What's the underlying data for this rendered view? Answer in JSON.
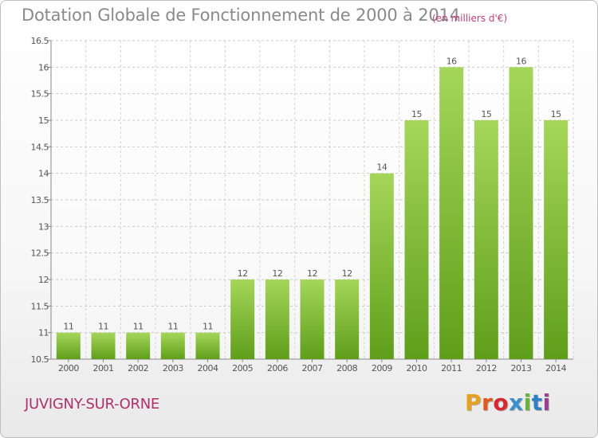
{
  "header": {
    "title": "Dotation Globale de Fonctionnement de 2000 à 2014",
    "subtitle": "(en milliers d'€)"
  },
  "footer": {
    "commune": "JUVIGNY-SUR-ORNE",
    "logo": {
      "letters": [
        "P",
        "r",
        "o",
        "x",
        "i",
        "t",
        "i"
      ],
      "colors": [
        "#e8a020",
        "#e05a1e",
        "#d7282f",
        "#3a8fd0",
        "#6ab33a",
        "#2f7fc4",
        "#9a3f94"
      ]
    }
  },
  "chart_data": {
    "type": "bar",
    "title": "Dotation Globale de Fonctionnement de 2000 à 2014",
    "subtitle": "(en milliers d'€)",
    "xlabel": "",
    "ylabel": "",
    "categories": [
      "2000",
      "2001",
      "2002",
      "2003",
      "2004",
      "2005",
      "2006",
      "2007",
      "2008",
      "2009",
      "2010",
      "2011",
      "2012",
      "2013",
      "2014"
    ],
    "values": [
      11,
      11,
      11,
      11,
      11,
      12,
      12,
      12,
      12,
      14,
      15,
      16,
      15,
      16,
      15
    ],
    "data_labels": [
      "11",
      "11",
      "11",
      "11",
      "11",
      "12",
      "12",
      "12",
      "12",
      "14",
      "15",
      "16",
      "15",
      "16",
      "15"
    ],
    "ylim": [
      10.5,
      16.5
    ],
    "yticks": [
      10.5,
      11,
      11.5,
      12,
      12.5,
      13,
      13.5,
      14,
      14.5,
      15,
      15.5,
      16,
      16.5
    ],
    "ytick_labels": [
      "10.5",
      "11",
      "11.5",
      "12",
      "12.5",
      "13",
      "13.5",
      "14",
      "14.5",
      "15",
      "15.5",
      "16",
      "16.5"
    ],
    "grid": true,
    "bar_color": "#8cc63f"
  }
}
